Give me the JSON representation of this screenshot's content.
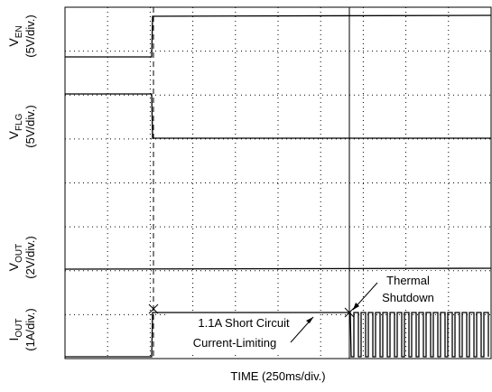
{
  "channels": [
    {
      "symbol": "V",
      "sub": "EN",
      "scale": "(5V/div.)"
    },
    {
      "symbol": "V",
      "sub": "FLG",
      "scale": "(5V/div.)"
    },
    {
      "symbol": "V",
      "sub": "OUT",
      "scale": "(2V/div.)"
    },
    {
      "symbol": "I",
      "sub": "OUT",
      "scale": "(1A/div.)"
    }
  ],
  "annotations": {
    "current_limit": [
      "1.1A Short Circuit",
      "Current-Limiting"
    ],
    "thermal": [
      "Thermal",
      "Shutdown"
    ]
  },
  "x_label": "TIME (250ms/div.)"
}
